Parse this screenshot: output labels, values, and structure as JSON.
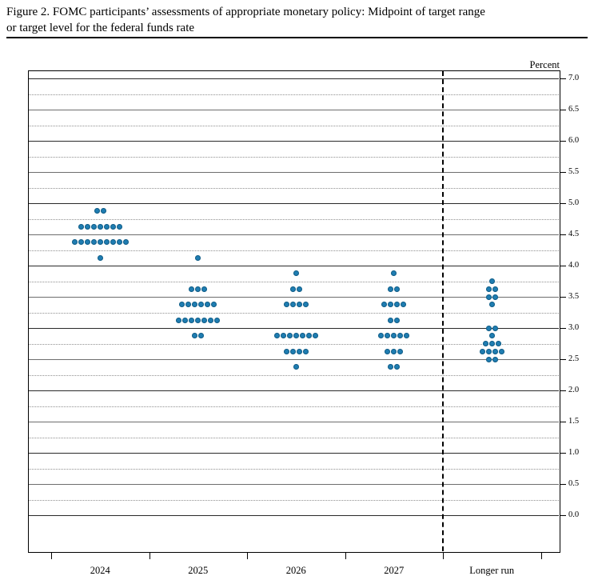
{
  "figure": {
    "title_line1": "Figure 2.  FOMC participants’ assessments of appropriate monetary policy: Midpoint of target range",
    "title_line2": "or target level for the federal funds rate"
  },
  "chart_data": {
    "type": "scatter",
    "subtype": "fomc-dot-plot",
    "title": "FOMC participants’ assessments of appropriate monetary policy: Midpoint of target range or target level for the federal funds rate",
    "ylabel": "Percent",
    "xlabel": "",
    "ylim": [
      0.0,
      7.0
    ],
    "y_label_step": 0.5,
    "grid": {
      "solid_lines_every": 0.5,
      "dotted_lines_every": 0.25,
      "grid_on": true
    },
    "legend_position": "none",
    "dot_color": "#1f7db2",
    "y_tick_labels": [
      "7.0",
      "6.5",
      "6.0",
      "5.5",
      "5.0",
      "4.5",
      "4.0",
      "3.5",
      "3.0",
      "2.5",
      "2.0",
      "1.5",
      "1.0",
      "0.5",
      "0.0"
    ],
    "categories": [
      "2024",
      "2025",
      "2026",
      "2027",
      "Longer run"
    ],
    "separator_before_category": "Longer run",
    "series": [
      {
        "category": "2024",
        "dots": [
          {
            "rate": 4.875,
            "count": 2
          },
          {
            "rate": 4.625,
            "count": 7
          },
          {
            "rate": 4.375,
            "count": 9
          },
          {
            "rate": 4.125,
            "count": 1
          }
        ]
      },
      {
        "category": "2025",
        "dots": [
          {
            "rate": 4.125,
            "count": 1
          },
          {
            "rate": 3.625,
            "count": 3
          },
          {
            "rate": 3.375,
            "count": 6
          },
          {
            "rate": 3.125,
            "count": 7
          },
          {
            "rate": 2.875,
            "count": 2
          }
        ]
      },
      {
        "category": "2026",
        "dots": [
          {
            "rate": 3.875,
            "count": 1
          },
          {
            "rate": 3.625,
            "count": 2
          },
          {
            "rate": 3.375,
            "count": 4
          },
          {
            "rate": 2.875,
            "count": 7
          },
          {
            "rate": 2.625,
            "count": 4
          },
          {
            "rate": 2.375,
            "count": 1
          }
        ]
      },
      {
        "category": "2027",
        "dots": [
          {
            "rate": 3.875,
            "count": 1
          },
          {
            "rate": 3.625,
            "count": 2
          },
          {
            "rate": 3.375,
            "count": 4
          },
          {
            "rate": 3.125,
            "count": 2
          },
          {
            "rate": 2.875,
            "count": 5
          },
          {
            "rate": 2.625,
            "count": 3
          },
          {
            "rate": 2.375,
            "count": 2
          }
        ]
      },
      {
        "category": "Longer run",
        "dots": [
          {
            "rate": 3.75,
            "count": 1
          },
          {
            "rate": 3.625,
            "count": 2
          },
          {
            "rate": 3.5,
            "count": 2
          },
          {
            "rate": 3.375,
            "count": 1
          },
          {
            "rate": 3.0,
            "count": 2
          },
          {
            "rate": 2.875,
            "count": 1
          },
          {
            "rate": 2.75,
            "count": 3
          },
          {
            "rate": 2.625,
            "count": 4
          },
          {
            "rate": 2.5,
            "count": 2
          }
        ]
      }
    ]
  }
}
